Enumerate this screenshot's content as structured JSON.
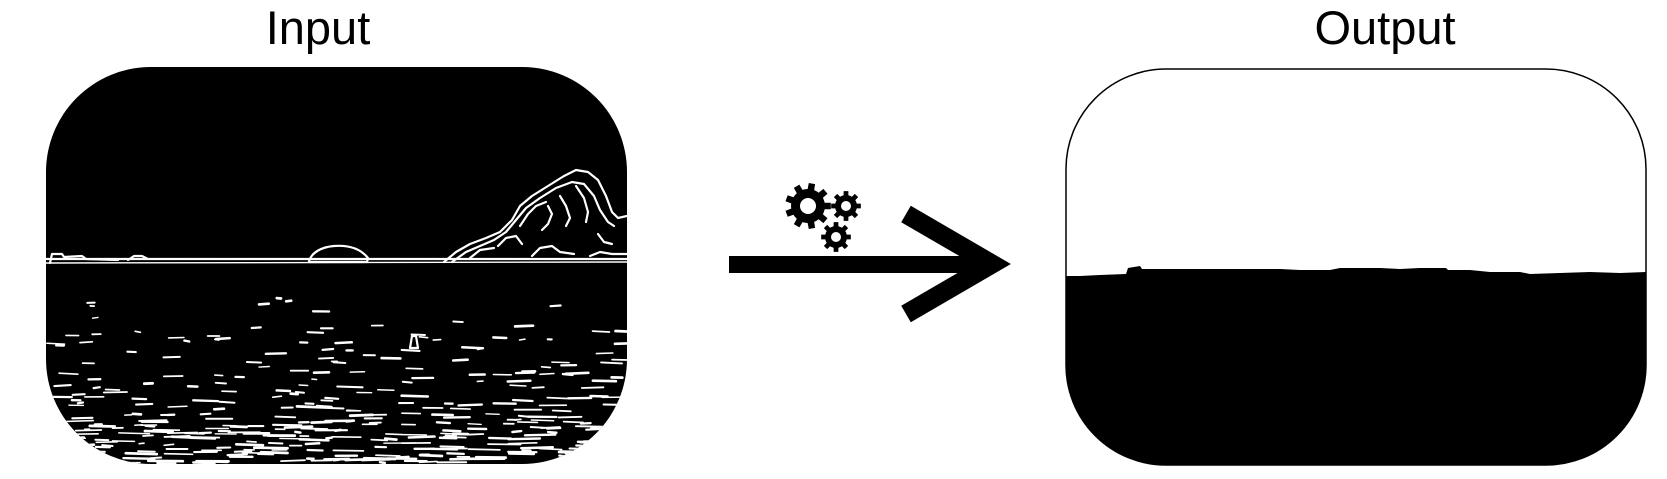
{
  "input": {
    "label": "Input"
  },
  "output": {
    "label": "Output"
  },
  "process": {
    "icon": "gears-icon",
    "arrow": "right-arrow-icon"
  },
  "colors": {
    "foreground": "#000000",
    "background": "#ffffff"
  }
}
